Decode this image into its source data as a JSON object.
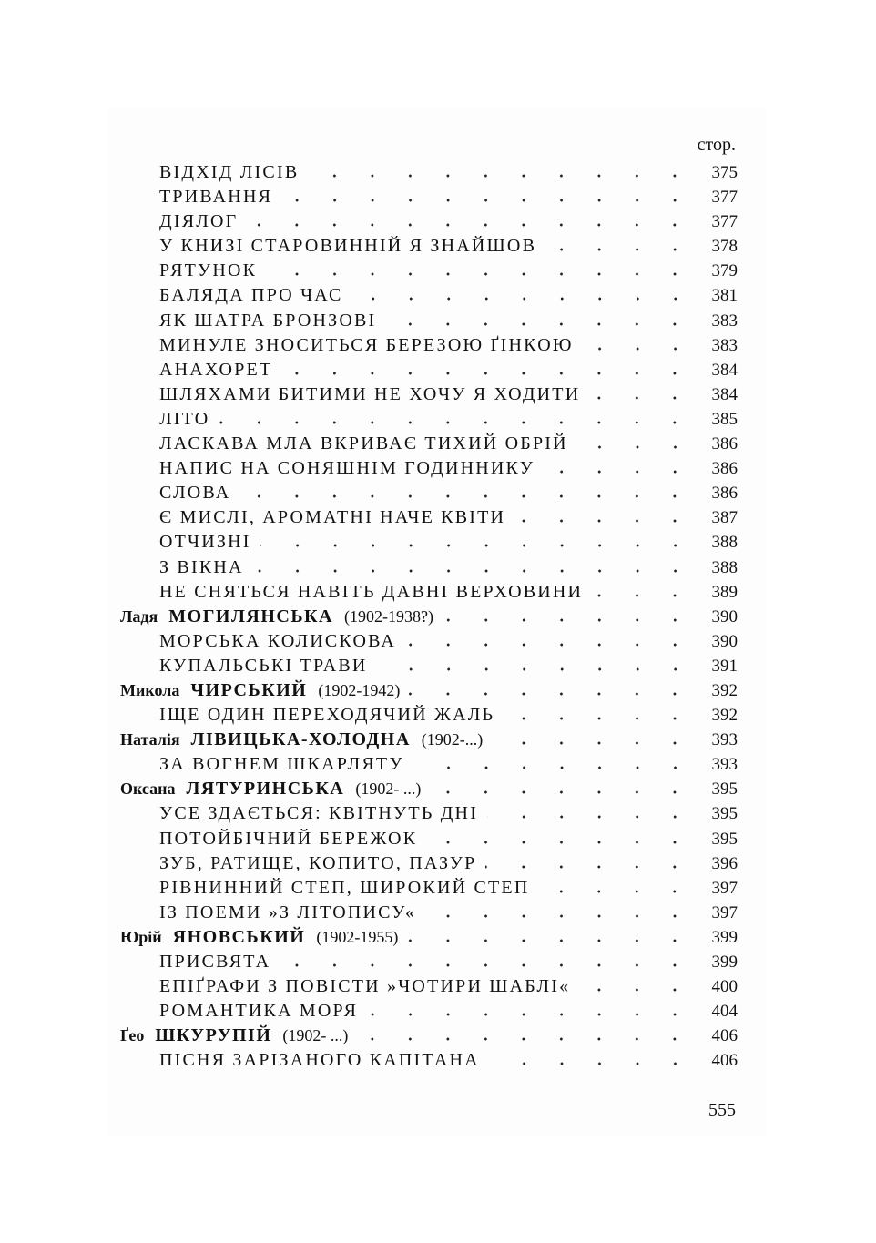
{
  "header": "стор.",
  "entries": [
    {
      "type": "work",
      "title": "ВІДХІД ЛІСІВ",
      "page": "375"
    },
    {
      "type": "work",
      "title": "ТРИВАННЯ",
      "page": "377"
    },
    {
      "type": "work",
      "title": "ДІЯЛОГ",
      "page": "377"
    },
    {
      "type": "work",
      "title": "У КНИЗІ СТАРОВИННІЙ Я ЗНАЙШОВ",
      "page": "378"
    },
    {
      "type": "work",
      "title": "РЯТУНОК",
      "page": "379"
    },
    {
      "type": "work",
      "title": "БАЛЯДА ПРО ЧАС",
      "page": "381"
    },
    {
      "type": "work",
      "title": "ЯК ШАТРА БРОНЗОВІ",
      "page": "383"
    },
    {
      "type": "work",
      "title": "МИНУЛЕ ЗНОСИТЬСЯ БЕРЕЗОЮ ҐІНКОЮ",
      "page": "383"
    },
    {
      "type": "work",
      "title": "АНАХОРЕТ",
      "page": "384"
    },
    {
      "type": "work",
      "title": "ШЛЯХАМИ БИТИМИ НЕ ХОЧУ Я ХОДИТИ",
      "page": "384"
    },
    {
      "type": "work",
      "title": "ЛІТО",
      "page": "385"
    },
    {
      "type": "work",
      "title": "ЛАСКАВА МЛА ВКРИВАЄ ТИХИЙ ОБРІЙ",
      "page": "386"
    },
    {
      "type": "work",
      "title": "НАПИС НА СОНЯШНІМ ГОДИННИКУ",
      "page": "386"
    },
    {
      "type": "work",
      "title": "СЛОВА",
      "page": "386"
    },
    {
      "type": "work",
      "title": "Є МИСЛІ, АРОМАТНІ НАЧЕ КВІТИ",
      "page": "387"
    },
    {
      "type": "work",
      "title": "ОТЧИЗНІ",
      "page": "388"
    },
    {
      "type": "work",
      "title": "З ВІКНА",
      "page": "388"
    },
    {
      "type": "work",
      "title": "НЕ СНЯТЬСЯ НАВІТЬ ДАВНІ ВЕРХОВИНИ",
      "page": "389"
    },
    {
      "type": "author",
      "first": "Ладя",
      "last": "МОГИЛЯНСЬКА",
      "dates": "(1902-1938?)",
      "page": "390"
    },
    {
      "type": "work",
      "title": "МОРСЬКА КОЛИСКОВА",
      "page": "390"
    },
    {
      "type": "work",
      "title": "КУПАЛЬСЬКІ ТРАВИ",
      "page": "391"
    },
    {
      "type": "author",
      "first": "Микола",
      "last": "ЧИРСЬКИЙ",
      "dates": "(1902-1942)",
      "page": "392"
    },
    {
      "type": "work",
      "title": "ІЩЕ ОДИН ПЕРЕХОДЯЧИЙ ЖАЛЬ",
      "page": "392"
    },
    {
      "type": "author",
      "first": "Наталія",
      "last": "ЛІВИЦЬКА-ХОЛОДНА",
      "dates": "(1902-...)",
      "page": "393"
    },
    {
      "type": "work",
      "title": "ЗА ВОГНЕМ ШКАРЛЯТУ",
      "page": "393"
    },
    {
      "type": "author",
      "first": "Оксана",
      "last": "ЛЯТУРИНСЬКА",
      "dates": "(1902- ...)",
      "page": "395"
    },
    {
      "type": "work",
      "title": "УСЕ ЗДАЄТЬСЯ: КВІТНУТЬ ДНІ",
      "page": "395"
    },
    {
      "type": "work",
      "title": "ПОТОЙБІЧНИЙ БЕРЕЖОК",
      "page": "395"
    },
    {
      "type": "work",
      "title": "ЗУБ, РАТИЩЕ, КОПИТО, ПАЗУР",
      "page": "396"
    },
    {
      "type": "work",
      "title": "РІВНИННИЙ СТЕП, ШИРОКИЙ СТЕП",
      "page": "397"
    },
    {
      "type": "work",
      "title": "ІЗ ПОЕМИ »З ЛІТОПИСУ«",
      "page": "397"
    },
    {
      "type": "author",
      "first": "Юрій",
      "last": "ЯНОВСЬКИЙ",
      "dates": "(1902-1955)",
      "page": "399"
    },
    {
      "type": "work",
      "title": "ПРИСВЯТА",
      "page": "399"
    },
    {
      "type": "work",
      "title": "ЕПІҐРАФИ З ПОВІСТИ »ЧОТИРИ ШАБЛІ«",
      "page": "400"
    },
    {
      "type": "work",
      "title": "РОМАНТИКА МОРЯ",
      "page": "404"
    },
    {
      "type": "author",
      "first": "Ґео",
      "last": "ШКУРУПІЙ",
      "dates": "(1902- ...)",
      "page": "406"
    },
    {
      "type": "work",
      "title": "ПІСНЯ ЗАРІЗАНОГО КАПІТАНА",
      "page": "406"
    }
  ],
  "folio": "555"
}
